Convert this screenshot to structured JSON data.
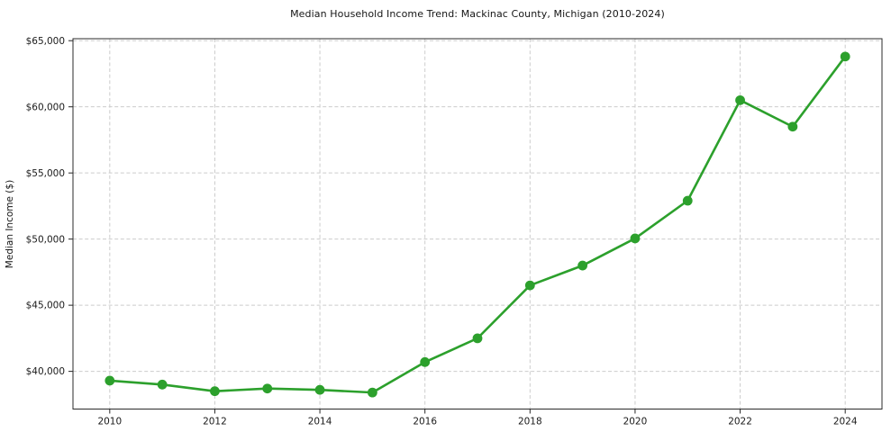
{
  "chart_data": {
    "type": "line",
    "title": "Median Household Income Trend: Mackinac County, Michigan (2010-2024)",
    "xlabel": "",
    "ylabel": "Median Income ($)",
    "x": [
      2010,
      2011,
      2012,
      2013,
      2014,
      2015,
      2016,
      2017,
      2018,
      2019,
      2020,
      2021,
      2022,
      2023,
      2024
    ],
    "values": [
      39300,
      39000,
      38500,
      38700,
      38600,
      38400,
      40700,
      42500,
      46500,
      48000,
      50050,
      52900,
      60500,
      58500,
      63800
    ],
    "x_ticks": {
      "values": [
        2010,
        2012,
        2014,
        2016,
        2018,
        2020,
        2022,
        2024
      ],
      "labels": [
        "2010",
        "2012",
        "2014",
        "2016",
        "2018",
        "2020",
        "2022",
        "2024"
      ]
    },
    "y_ticks": {
      "values": [
        40000,
        45000,
        50000,
        55000,
        60000,
        65000
      ],
      "labels": [
        "$40,000",
        "$45,000",
        "$50,000",
        "$55,000",
        "$60,000",
        "$65,000"
      ]
    },
    "xlim": [
      2009.3,
      2024.7
    ],
    "ylim": [
      37150,
      65150
    ],
    "grid": {
      "visible": true,
      "style": "dashed",
      "color": "#cccccc",
      "axes": "both"
    },
    "legend": "none",
    "line_color": "#2ca02c",
    "marker": "circle",
    "marker_size": 5.4,
    "line_width": 2.6,
    "spine_color": "#2b2b2b",
    "tick_color": "#262626",
    "text_color": "#1a1a1a",
    "background": "#ffffff"
  }
}
